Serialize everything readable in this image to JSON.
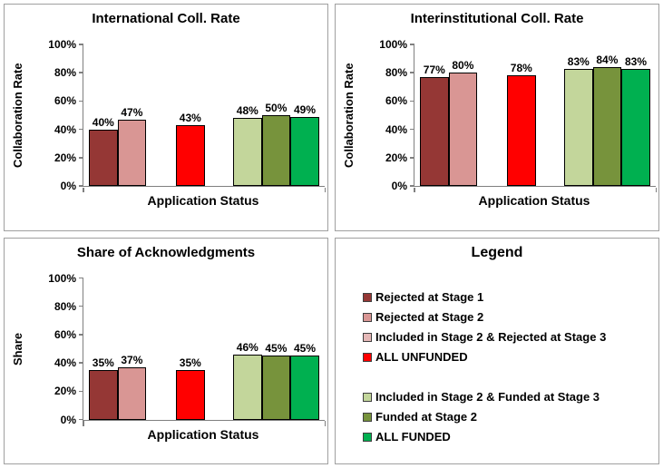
{
  "page": {
    "background": "#ffffff",
    "panel_border_color": "#a0a0a0",
    "axis_color": "#808080",
    "bar_border_color": "#000000",
    "text_color": "#000000"
  },
  "chart_data": [
    {
      "type": "bar",
      "title": "International Coll. Rate",
      "xlabel": "Application Status",
      "ylabel": "Collaboration Rate",
      "ylim": [
        0,
        100
      ],
      "ytick_step": 20,
      "ytick_suffix": "%",
      "grid": false,
      "groups": [
        2,
        1,
        3
      ],
      "categories": [
        "Rejected at Stage 1",
        "Rejected at Stage 2",
        "ALL UNFUNDED",
        "Included in Stage 2 & Funded at Stage 3",
        "Funded at Stage 2",
        "ALL FUNDED"
      ],
      "values": [
        40,
        47,
        43,
        48,
        50,
        49
      ],
      "labels": [
        "40%",
        "47%",
        "43%",
        "48%",
        "50%",
        "49%"
      ],
      "bar_colors": [
        "#953735",
        "#D99694",
        "#FF0000",
        "#C3D69B",
        "#77933C",
        "#00B050"
      ]
    },
    {
      "type": "bar",
      "title": "Interinstitutional Coll. Rate",
      "xlabel": "Application Status",
      "ylabel": "Collaboration Rate",
      "ylim": [
        0,
        100
      ],
      "ytick_step": 20,
      "ytick_suffix": "%",
      "grid": false,
      "groups": [
        2,
        1,
        3
      ],
      "categories": [
        "Rejected at Stage 1",
        "Rejected at Stage 2",
        "ALL UNFUNDED",
        "Included in Stage 2 & Funded at Stage 3",
        "Funded at Stage 2",
        "ALL FUNDED"
      ],
      "values": [
        77,
        80,
        78,
        83,
        84,
        83
      ],
      "labels": [
        "77%",
        "80%",
        "78%",
        "83%",
        "84%",
        "83%"
      ],
      "bar_colors": [
        "#953735",
        "#D99694",
        "#FF0000",
        "#C3D69B",
        "#77933C",
        "#00B050"
      ]
    },
    {
      "type": "bar",
      "title": "Share of Acknowledgments",
      "xlabel": "Application Status",
      "ylabel": "Share",
      "ylim": [
        0,
        100
      ],
      "ytick_step": 20,
      "ytick_suffix": "%",
      "grid": false,
      "groups": [
        2,
        1,
        3
      ],
      "categories": [
        "Rejected at Stage 1",
        "Rejected at Stage 2",
        "ALL UNFUNDED",
        "Included in Stage 2 & Funded at Stage 3",
        "Funded at Stage 2",
        "ALL FUNDED"
      ],
      "values": [
        35,
        37,
        35,
        46,
        45,
        45
      ],
      "labels": [
        "35%",
        "37%",
        "35%",
        "46%",
        "45%",
        "45%"
      ],
      "bar_colors": [
        "#953735",
        "#D99694",
        "#FF0000",
        "#C3D69B",
        "#77933C",
        "#00B050"
      ]
    }
  ],
  "legend": {
    "title": "Legend",
    "groups": [
      [
        {
          "label": "Rejected at Stage 1",
          "color": "#953735"
        },
        {
          "label": "Rejected at Stage 2",
          "color": "#D99694"
        },
        {
          "label": "Included in Stage 2 & Rejected at Stage 3",
          "color": "#E5B8B7"
        },
        {
          "label": "ALL UNFUNDED",
          "color": "#FF0000"
        }
      ],
      [
        {
          "label": "Included in Stage 2 & Funded at Stage 3",
          "color": "#C3D69B"
        },
        {
          "label": "Funded at Stage 2",
          "color": "#77933C"
        },
        {
          "label": "ALL FUNDED",
          "color": "#00B050"
        }
      ]
    ]
  }
}
